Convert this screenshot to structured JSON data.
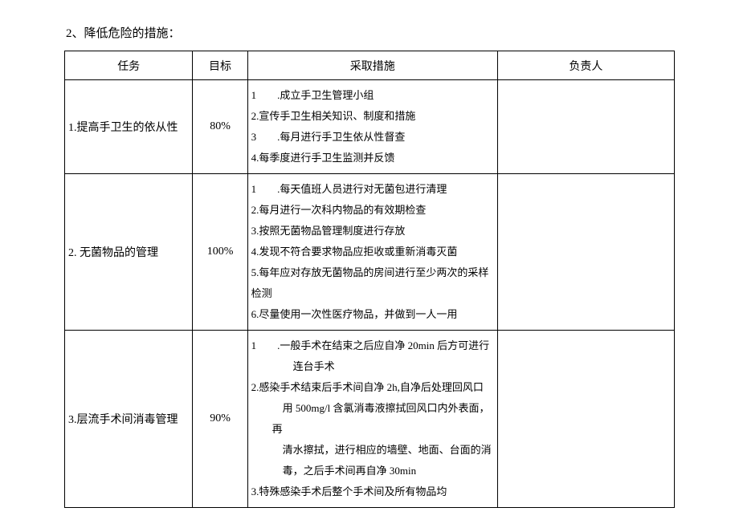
{
  "title": "2、降低危险的措施：",
  "headers": {
    "task": "任务",
    "target": "目标",
    "measure": "采取措施",
    "owner": "负责人"
  },
  "rows": [
    {
      "task": "1.提高手卫生的依从性",
      "target": "80%",
      "measures": [
        "1　　.成立手卫生管理小组",
        "2.宣传手卫生相关知识、制度和措施",
        "3　　.每月进行手卫生依从性督查",
        "4.每季度进行手卫生监测并反馈"
      ],
      "owner": ""
    },
    {
      "task": "2. 无菌物品的管理",
      "target": "100%",
      "measures": [
        "1　　.每天值班人员进行对无菌包进行清理",
        "2.每月进行一次科内物品的有效期检查",
        "3.按照无菌物品管理制度进行存放",
        "4.发现不符合要求物品应拒收或重新消毒灭菌",
        "5.每年应对存放无菌物品的房间进行至少两次的采样",
        "检测",
        "6.尽量使用一次性医疗物品，并做到一人一用"
      ],
      "owner": ""
    },
    {
      "task": "3.层流手术间消毒管理",
      "target": "90%",
      "measures": [
        "1　　.一般手术在结束之后应自净 20min 后方可进行",
        "　　连台手术",
        "2.感染手术结束后手术间自净 2h,自净后处理回风口",
        "　用 500mg/l 含氯消毒液擦拭回风口内外表面，再",
        "　清水擦拭，进行相应的墙壁、地面、台面的消",
        "　毒，之后手术间再自净 30min",
        "3.特殊感染手术后整个手术间及所有物品均"
      ],
      "owner": ""
    }
  ],
  "style": {
    "background": "#ffffff",
    "border_color": "#000000",
    "text_color": "#000000",
    "font_family": "SimSun",
    "title_fontsize": 15,
    "body_fontsize": 14,
    "measure_fontsize": 13,
    "line_height": 2.0,
    "columns": {
      "task_width_pct": 21,
      "target_width_pct": 9,
      "measure_width_pct": 41,
      "owner_width_pct": 29
    }
  }
}
